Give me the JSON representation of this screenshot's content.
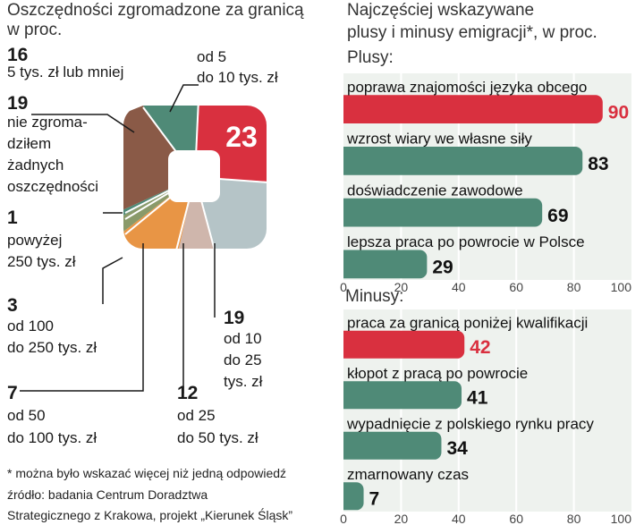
{
  "left": {
    "title_line1": "Oszczędności zgromadzone za granicą",
    "title_line2": "w proc."
  },
  "right": {
    "title_line1": "Najczęściej wskazywane",
    "title_line2": "plusy i minusy emigracji*, w proc.",
    "plus_header": "Plusy:",
    "minus_header": "Minusy:"
  },
  "footnote": {
    "line1": "* można było wskazać więcej niż jedną odpowiedź",
    "line2": "źródło: badania Centrum Doradztwa",
    "line3": "Strategicznego z Krakowa, projekt „Kierunek Śląsk”"
  },
  "colors": {
    "red": "#d9303f",
    "green": "#4f8a77",
    "brown": "#8a5a47",
    "olive": "#8a9a6a",
    "orange": "#e89545",
    "pink": "#cfb6ac",
    "grey": "#b5c4c7"
  },
  "chart_data": [
    {
      "type": "pie",
      "title": "Oszczędności zgromadzone za granicą w proc.",
      "slices": [
        {
          "key": "s5to10",
          "value": 23,
          "label_num": "23",
          "label_line1": "od 5",
          "label_line2": "do 10 tys. zł",
          "label_line3": ""
        },
        {
          "key": "s10to25",
          "value": 19,
          "label_num": "19",
          "label_line1": "od 10",
          "label_line2": "do 25",
          "label_line3": "tys. zł"
        },
        {
          "key": "s25to50",
          "value": 12,
          "label_num": "12",
          "label_line1": "od 25",
          "label_line2": "do 50 tys. zł",
          "label_line3": ""
        },
        {
          "key": "s50to100",
          "value": 7,
          "label_num": "7",
          "label_line1": "od 50",
          "label_line2": "do 100 tys. zł",
          "label_line3": ""
        },
        {
          "key": "s100to250",
          "value": 3,
          "label_num": "3",
          "label_line1": "od 100",
          "label_line2": "do 250 tys. zł",
          "label_line3": ""
        },
        {
          "key": "s250plus",
          "value": 1,
          "label_num": "1",
          "label_line1": "powyżej",
          "label_line2": "250 tys. zł",
          "label_line3": ""
        },
        {
          "key": "snone",
          "value": 19,
          "label_num": "19",
          "label_line1": "nie zgroma-",
          "label_line2": "dziłem",
          "label_line3": "żadnych",
          "label_line4": "oszczędności"
        },
        {
          "key": "s5less",
          "value": 16,
          "label_num": "16",
          "label_line1": "5 tys. zł lub mniej",
          "label_line2": "",
          "label_line3": ""
        }
      ]
    },
    {
      "type": "bar",
      "title": "Plusy",
      "categories": [
        "poprawa znajomości języka obcego",
        "wzrost wiary we własne siły",
        "doświadczenie zawodowe",
        "lepsza praca po powrocie w Polsce"
      ],
      "values": [
        90,
        83,
        69,
        29
      ],
      "xlim": [
        0,
        100
      ],
      "ticks": [
        "0",
        "20",
        "40",
        "60",
        "80",
        "100"
      ]
    },
    {
      "type": "bar",
      "title": "Minusy",
      "categories": [
        "praca za granicą poniżej kwalifikacji",
        "kłopot z pracą po powrocie",
        "wypadnięcie z polskiego rynku pracy",
        "zmarnowany czas"
      ],
      "values": [
        42,
        41,
        34,
        7
      ],
      "xlim": [
        0,
        100
      ],
      "ticks": [
        "0",
        "20",
        "40",
        "60",
        "80",
        "100"
      ]
    }
  ]
}
